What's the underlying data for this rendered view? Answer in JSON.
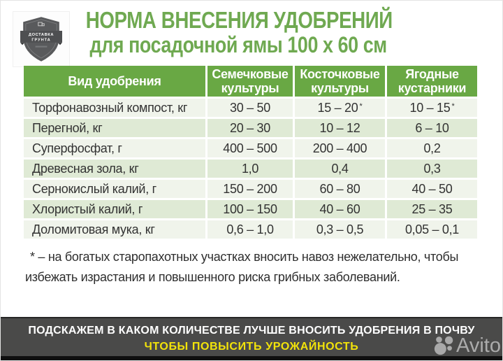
{
  "logo": {
    "line1": "ДОСТАВКА",
    "line2": "ГРУНТА"
  },
  "title": {
    "line1": "НОРМА ВНЕСЕНИЯ УДОБРЕНИЙ",
    "line2": "для посадочной ямы 100 х 60 см"
  },
  "table": {
    "headers": [
      "Вид удобрения",
      "Семечковые культуры",
      "Косточковые культуры",
      "Ягодные кустарники"
    ],
    "rows": [
      [
        "Торфонавозный компост, кг",
        "30 – 50",
        "15 – 20 *",
        "10 – 15 *"
      ],
      [
        "Перегной, кг",
        "20 – 30",
        "10 – 12",
        "6 – 10"
      ],
      [
        "Суперфосфат, г",
        "400 – 500",
        "200 – 400",
        "0,2"
      ],
      [
        "Древесная зола, кг",
        "1,0",
        "0,4",
        "0,3"
      ],
      [
        "Сернокислый калий, г",
        "150 – 200",
        "60 – 80",
        "40 – 50"
      ],
      [
        "Хлористый калий, г",
        "100 – 150",
        "40 – 60",
        "25 – 35"
      ],
      [
        "Доломитовая мука, кг",
        "0,6 – 1,0",
        "0,3 – 0,5",
        "0,05 – 0,1"
      ]
    ]
  },
  "footnote": "* – на богатых старопахотных участках вносить навоз нежелательно, чтобы избежать израстания и повышенного риска грибных заболеваний.",
  "banner": {
    "line1": "ПОДСКАЖЕМ В КАКОМ КОЛИЧЕСТВЕ ЛУЧШЕ ВНОСИТЬ УДОБРЕНИЯ В ПОЧВУ",
    "line2": "ЧТОБЫ ПОВЫСИТЬ УРОЖАЙНОСТЬ"
  },
  "watermark": {
    "label": "Avito"
  },
  "colors": {
    "title_green": "#6fa951",
    "header_green": "#69a844",
    "row_light": "#f0f4eb",
    "row_alt": "#dfead5",
    "banner_bg": "#4a4a49",
    "banner_yellow": "#f2e30a",
    "shield_gray": "#595a5c"
  }
}
